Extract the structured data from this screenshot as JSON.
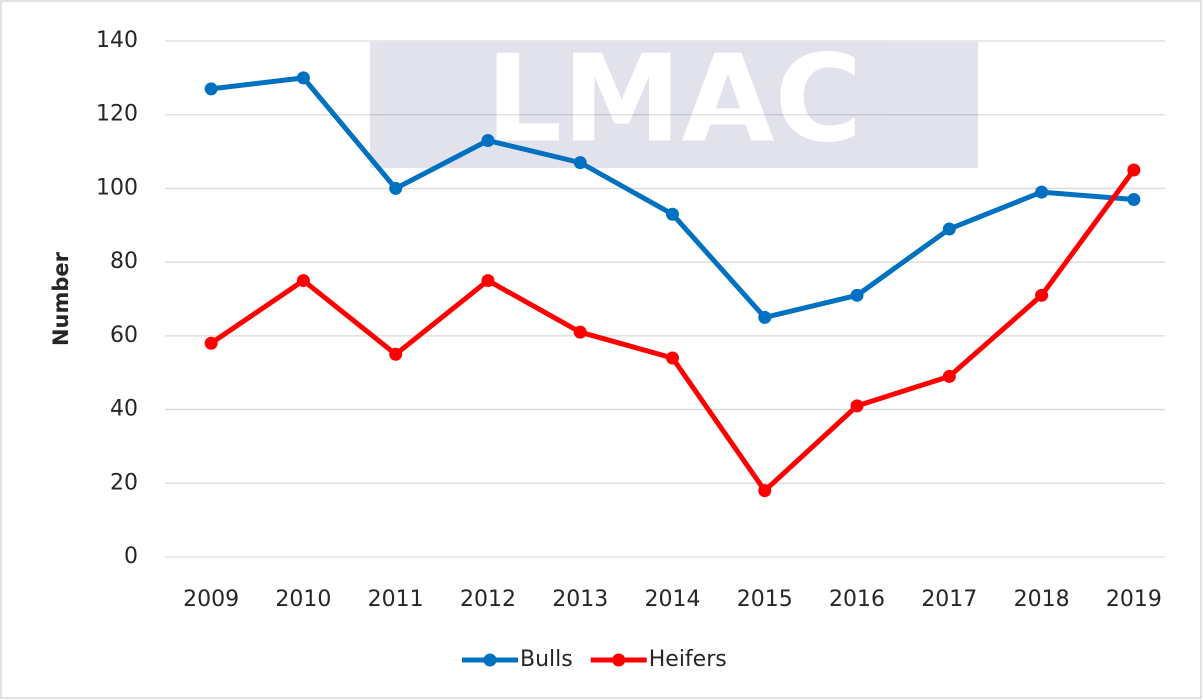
{
  "chart_data": {
    "type": "line",
    "watermark": "LMAC",
    "y_label": "Number",
    "categories": [
      "2009",
      "2010",
      "2011",
      "2012",
      "2013",
      "2014",
      "2015",
      "2016",
      "2017",
      "2018",
      "2019"
    ],
    "series": [
      {
        "name": "Bulls",
        "color": "#0070c0",
        "values": [
          127,
          130,
          100,
          113,
          107,
          93,
          65,
          71,
          89,
          99,
          97
        ]
      },
      {
        "name": "Heifers",
        "color": "#ff0000",
        "values": [
          58,
          75,
          55,
          75,
          61,
          54,
          18,
          41,
          49,
          71,
          105
        ]
      }
    ],
    "ylim": [
      0,
      140
    ],
    "yticks": [
      0,
      20,
      40,
      60,
      80,
      100,
      120,
      140
    ],
    "grid": true,
    "legend": "bottom"
  }
}
